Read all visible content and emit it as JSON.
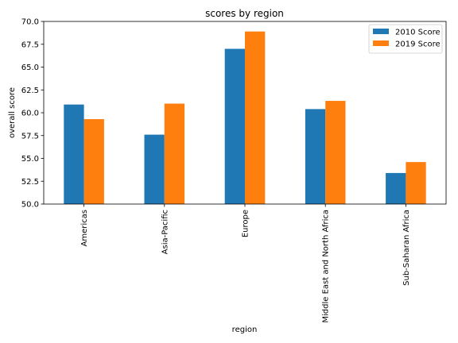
{
  "chart_data": {
    "type": "bar",
    "title": "scores by region",
    "xlabel": "region",
    "ylabel": "overall score",
    "categories": [
      "Americas",
      "Asia-Pacific",
      "Europe",
      "Middle East and North Africa",
      "Sub-Saharan Africa"
    ],
    "series": [
      {
        "name": "2010 Score",
        "color": "#1f77b4",
        "values": [
          60.9,
          57.6,
          67.0,
          60.4,
          53.4
        ]
      },
      {
        "name": "2019 Score",
        "color": "#ff7f0e",
        "values": [
          59.3,
          61.0,
          68.9,
          61.3,
          54.6
        ]
      }
    ],
    "ylim": [
      50.0,
      70.0
    ],
    "yticks": [
      "50.0",
      "52.5",
      "55.0",
      "57.5",
      "60.0",
      "62.5",
      "65.0",
      "67.5",
      "70.0"
    ],
    "grid": false,
    "legend_position": "top-right"
  }
}
